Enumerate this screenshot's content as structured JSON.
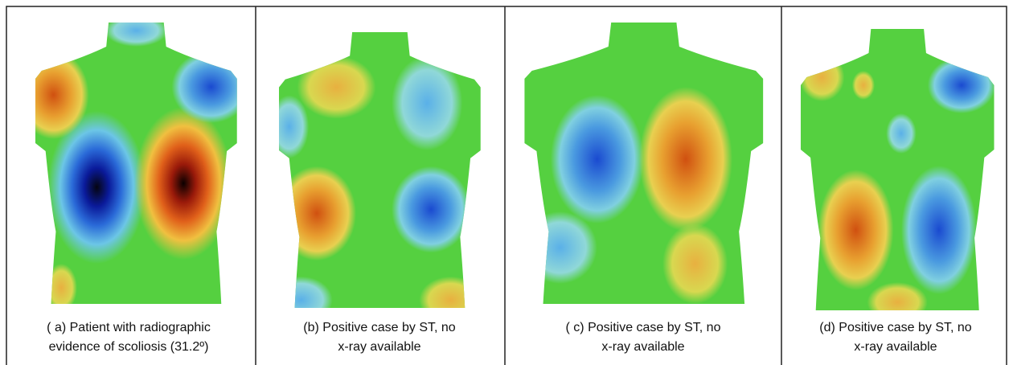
{
  "panels": [
    {
      "caption": [
        "( a) Patient with radiographic",
        "evidence of scoliosis (31.2º)"
      ]
    },
    {
      "caption": [
        "(b) Positive case by ST, no",
        "x-ray available"
      ]
    },
    {
      "caption": [
        "( c) Positive case by ST, no",
        "x-ray available"
      ]
    },
    {
      "caption": [
        "(d) Positive case by ST, no",
        "x-ray available"
      ]
    }
  ]
}
